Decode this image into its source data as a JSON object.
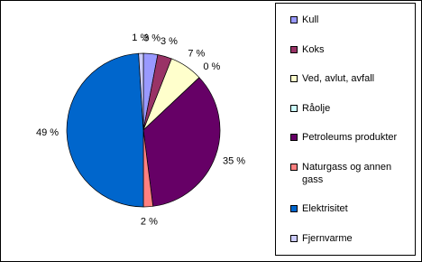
{
  "chart_data": {
    "type": "pie",
    "categories": [
      "Kull",
      "Koks",
      "Ved, avlut, avfall",
      "Råolje",
      "Petroleums produkter",
      "Naturgass og annen gass",
      "Elektrisitet",
      "Fjernvarme"
    ],
    "values": [
      3,
      3,
      7,
      0,
      35,
      2,
      49,
      1
    ],
    "value_labels": [
      "3 %",
      "3 %",
      "7 %",
      "0 %",
      "35 %",
      "2 %",
      "49 %",
      "1 %"
    ],
    "colors": [
      "#9999ff",
      "#993366",
      "#ffffcc",
      "#ccffff",
      "#660066",
      "#ff8080",
      "#0066cc",
      "#ccccff"
    ],
    "legend": "right"
  }
}
